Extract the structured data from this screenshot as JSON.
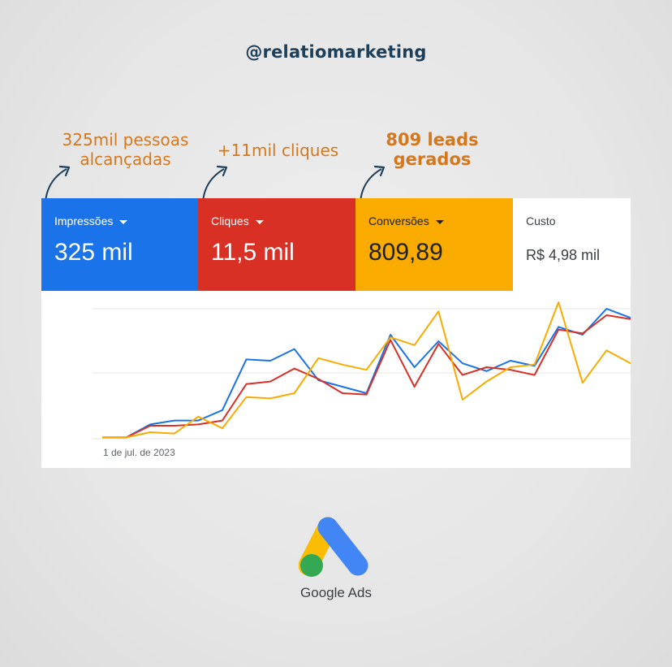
{
  "header": {
    "handle": "@relatiomarketing"
  },
  "annotations": [
    {
      "line1": "325mil pessoas",
      "line2": "alcançadas"
    },
    {
      "line1": "+11mil cliques",
      "line2": ""
    },
    {
      "line1": "809 leads",
      "line2": "gerados"
    }
  ],
  "metrics": {
    "impressions": {
      "label": "Impressões",
      "value": "325 mil",
      "color": "#1a73e8"
    },
    "clicks": {
      "label": "Cliques",
      "value": "11,5 mil",
      "color": "#d93025"
    },
    "conversions": {
      "label": "Conversões",
      "value": "809,89",
      "color": "#f9ab00"
    },
    "cost": {
      "label": "Custo",
      "value": "R$ 4,98 mil"
    }
  },
  "chart_data": {
    "type": "line",
    "x_start_label": "1 de jul. de 2023",
    "ylim": [
      0,
      100
    ],
    "grid": true,
    "series": [
      {
        "color": "#1a73e8",
        "values": [
          1,
          1,
          11,
          14,
          14,
          22,
          61,
          60,
          69,
          45,
          40,
          35,
          80,
          55,
          75,
          58,
          52,
          60,
          56,
          86,
          80,
          100,
          93
        ]
      },
      {
        "color": "#d93025",
        "values": [
          1,
          1,
          10,
          10,
          11,
          14,
          42,
          44,
          54,
          46,
          35,
          34,
          76,
          40,
          73,
          49,
          55,
          53,
          49,
          84,
          81,
          95,
          92
        ]
      },
      {
        "color": "#f9ab00",
        "values": [
          1,
          1,
          5,
          4,
          17,
          8,
          32,
          31,
          35,
          62,
          57,
          53,
          78,
          72,
          98,
          30,
          44,
          55,
          57,
          105,
          43,
          68,
          58
        ]
      }
    ]
  },
  "brand": {
    "logo_text": "Google Ads"
  }
}
